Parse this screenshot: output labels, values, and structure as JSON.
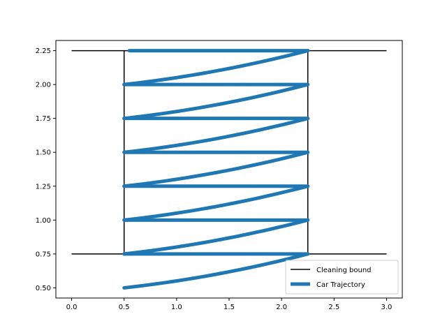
{
  "chart_data": {
    "type": "line",
    "title": "",
    "xlabel": "",
    "ylabel": "",
    "xlim": [
      -0.15,
      3.15
    ],
    "ylim": [
      0.425,
      2.325
    ],
    "xticks": [
      0.0,
      0.5,
      1.0,
      1.5,
      2.0,
      2.5,
      3.0
    ],
    "xtick_labels": [
      "0.0",
      "0.5",
      "1.0",
      "1.5",
      "2.0",
      "2.5",
      "3.0"
    ],
    "yticks": [
      0.5,
      0.75,
      1.0,
      1.25,
      1.5,
      1.75,
      2.0,
      2.25
    ],
    "ytick_labels": [
      "0.50",
      "0.75",
      "1.00",
      "1.25",
      "1.50",
      "1.75",
      "2.00",
      "2.25"
    ],
    "grid": false,
    "legend_position": "lower-right",
    "series": [
      {
        "name": "Cleaning bound",
        "color": "#000000",
        "segments": [
          [
            [
              0.0,
              2.25
            ],
            [
              3.0,
              2.25
            ]
          ],
          [
            [
              0.0,
              0.75
            ],
            [
              3.0,
              0.75
            ]
          ],
          [
            [
              0.5,
              0.75
            ],
            [
              0.5,
              2.25
            ]
          ],
          [
            [
              2.25,
              0.75
            ],
            [
              2.25,
              2.25
            ]
          ]
        ]
      },
      {
        "name": "Car Trajectory",
        "color": "#1f77b4",
        "sweeps": [
          {
            "from": [
              0.5,
              0.5
            ],
            "to": [
              2.25,
              0.75
            ]
          },
          {
            "from": [
              2.25,
              0.75
            ],
            "to": [
              0.5,
              0.75
            ]
          },
          {
            "from": [
              0.5,
              0.75
            ],
            "to": [
              2.25,
              1.0
            ]
          },
          {
            "from": [
              2.25,
              1.0
            ],
            "to": [
              0.5,
              1.0
            ]
          },
          {
            "from": [
              0.5,
              1.0
            ],
            "to": [
              2.25,
              1.25
            ]
          },
          {
            "from": [
              2.25,
              1.25
            ],
            "to": [
              0.5,
              1.25
            ]
          },
          {
            "from": [
              0.5,
              1.25
            ],
            "to": [
              2.25,
              1.5
            ]
          },
          {
            "from": [
              2.25,
              1.5
            ],
            "to": [
              0.5,
              1.5
            ]
          },
          {
            "from": [
              0.5,
              1.5
            ],
            "to": [
              2.25,
              1.75
            ]
          },
          {
            "from": [
              2.25,
              1.75
            ],
            "to": [
              0.5,
              1.75
            ]
          },
          {
            "from": [
              0.5,
              1.75
            ],
            "to": [
              2.25,
              2.0
            ]
          },
          {
            "from": [
              2.25,
              2.0
            ],
            "to": [
              0.5,
              2.0
            ]
          },
          {
            "from": [
              0.5,
              2.0
            ],
            "to": [
              2.25,
              2.25
            ]
          },
          {
            "from": [
              2.25,
              2.25
            ],
            "to": [
              0.55,
              2.25
            ]
          }
        ]
      }
    ]
  }
}
